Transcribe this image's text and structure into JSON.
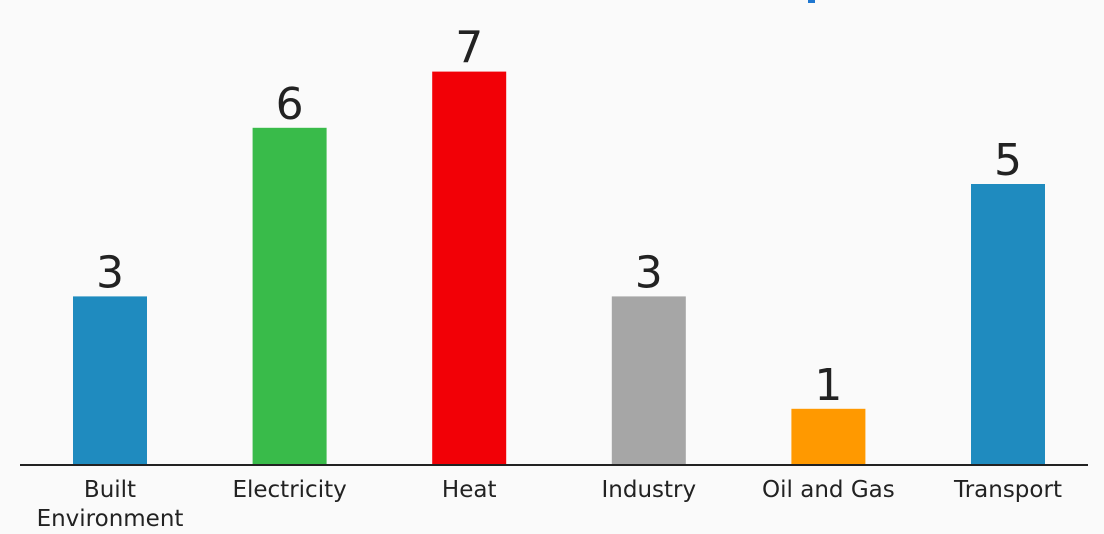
{
  "chart_data": {
    "type": "bar",
    "categories": [
      "Built Environment",
      "Electricity",
      "Heat",
      "Industry",
      "Oil and Gas",
      "Transport"
    ],
    "values": [
      3,
      6,
      7,
      3,
      1,
      5
    ],
    "colors": [
      "#1f8bbf",
      "#39bb4a",
      "#f20006",
      "#a6a6a6",
      "#ff9900",
      "#1f8bbf"
    ],
    "title": "",
    "xlabel": "",
    "ylabel": "",
    "ylim": [
      0,
      7
    ],
    "grid": false,
    "legend": "none",
    "data_labels": true
  }
}
